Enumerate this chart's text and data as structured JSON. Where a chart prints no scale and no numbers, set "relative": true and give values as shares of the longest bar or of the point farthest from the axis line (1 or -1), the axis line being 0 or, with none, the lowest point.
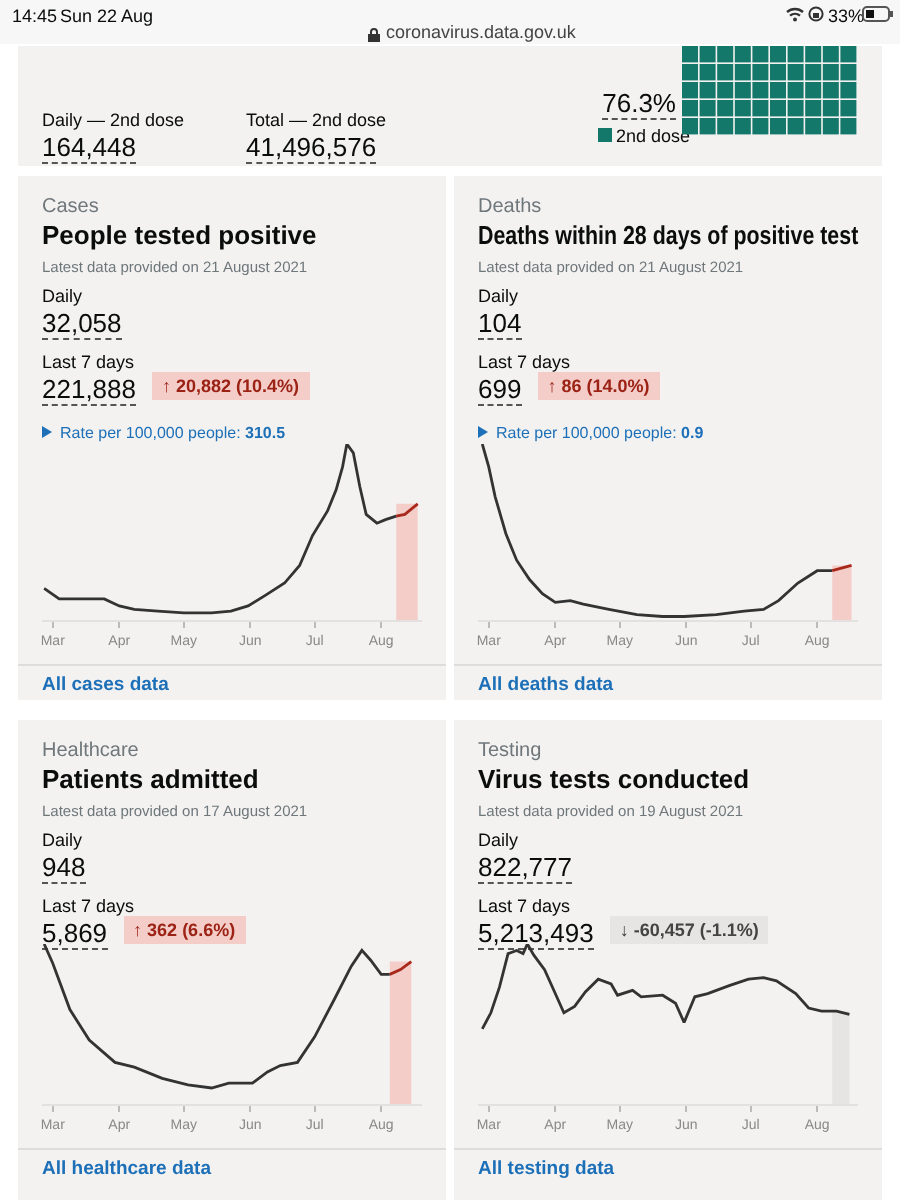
{
  "chart_data": [
    {
      "type": "other",
      "color": "#13776a",
      "annotations": [
        "14:45",
        "Sun 22 Aug",
        "coronavirus.data.gov.uk",
        "33%",
        "Daily — 2nd dose",
        "164,448",
        "Total — 2nd dose",
        "41,496,576",
        "76.3%",
        "2nd dose"
      ]
    },
    {
      "type": "line",
      "relative": true,
      "title": "People tested positive",
      "subtitle": "Latest data provided on 21 August 2021",
      "annotations": [
        "Cases",
        "Daily",
        "32,058",
        "Last 7 days",
        "221,888",
        "↑ 20,882 (10.4%)",
        "Rate per 100,000 people:",
        "310.5",
        "All cases data"
      ],
      "xlim": [
        "2021-02-24",
        "2021-08-20"
      ],
      "xticks": [
        {
          "value": "2021-03-01",
          "label": "Mar"
        },
        {
          "value": "2021-04-01",
          "label": "Apr"
        },
        {
          "value": "2021-05-01",
          "label": "May"
        },
        {
          "value": "2021-06-01",
          "label": "Jun"
        },
        {
          "value": "2021-07-01",
          "label": "Jul"
        },
        {
          "value": "2021-08-01",
          "label": "Aug"
        }
      ],
      "bands": [
        {
          "axis": "x",
          "from": "2021-08-08",
          "to": "2021-08-18",
          "color": "#f4cdc9"
        }
      ],
      "series": [
        {
          "color": "#333333",
          "x": [
            "2021-02-25",
            "2021-03-04",
            "2021-03-15",
            "2021-03-25",
            "2021-04-01",
            "2021-04-08",
            "2021-04-19",
            "2021-05-01",
            "2021-05-14",
            "2021-05-23",
            "2021-05-31",
            "2021-06-08",
            "2021-06-17",
            "2021-06-24",
            "2021-06-30",
            "2021-07-07",
            "2021-07-11",
            "2021-07-14",
            "2021-07-16",
            "2021-07-19",
            "2021-07-22",
            "2021-07-25",
            "2021-07-30",
            "2021-08-03",
            "2021-08-08"
          ],
          "values": [
            0.18,
            0.12,
            0.12,
            0.12,
            0.08,
            0.06,
            0.05,
            0.04,
            0.04,
            0.05,
            0.08,
            0.14,
            0.21,
            0.31,
            0.48,
            0.62,
            0.74,
            0.87,
            1.0,
            0.95,
            0.76,
            0.6,
            0.55,
            0.57,
            0.59
          ]
        },
        {
          "color": "#a8281b",
          "x": [
            "2021-08-08",
            "2021-08-12",
            "2021-08-18"
          ],
          "values": [
            0.59,
            0.6,
            0.66
          ]
        }
      ]
    },
    {
      "type": "line",
      "relative": true,
      "title": "Deaths within 28 days of positive test",
      "subtitle": "Latest data provided on 21 August 2021",
      "annotations": [
        "Deaths",
        "Daily",
        "104",
        "Last 7 days",
        "699",
        "↑ 86 (14.0%)",
        "Rate per 100,000 people:",
        "0.9",
        "All deaths data"
      ],
      "xlim": [
        "2021-02-24",
        "2021-08-20"
      ],
      "xticks": [
        {
          "value": "2021-03-01",
          "label": "Mar"
        },
        {
          "value": "2021-04-01",
          "label": "Apr"
        },
        {
          "value": "2021-05-01",
          "label": "May"
        },
        {
          "value": "2021-06-01",
          "label": "Jun"
        },
        {
          "value": "2021-07-01",
          "label": "Jul"
        },
        {
          "value": "2021-08-01",
          "label": "Aug"
        }
      ],
      "bands": [
        {
          "axis": "x",
          "from": "2021-08-08",
          "to": "2021-08-17",
          "color": "#f4cdc9"
        }
      ],
      "series": [
        {
          "color": "#333333",
          "x": [
            "2021-02-26",
            "2021-03-01",
            "2021-03-04",
            "2021-03-09",
            "2021-03-14",
            "2021-03-20",
            "2021-03-26",
            "2021-04-01",
            "2021-04-08",
            "2021-04-14",
            "2021-04-26",
            "2021-05-09",
            "2021-05-21",
            "2021-05-31",
            "2021-06-15",
            "2021-06-28",
            "2021-07-07",
            "2021-07-14",
            "2021-07-23",
            "2021-08-01",
            "2021-08-08"
          ],
          "values": [
            1.0,
            0.87,
            0.7,
            0.49,
            0.34,
            0.23,
            0.15,
            0.1,
            0.11,
            0.09,
            0.06,
            0.03,
            0.02,
            0.02,
            0.03,
            0.05,
            0.06,
            0.11,
            0.21,
            0.28,
            0.28
          ]
        },
        {
          "color": "#a8281b",
          "x": [
            "2021-08-08",
            "2021-08-17"
          ],
          "values": [
            0.28,
            0.31
          ]
        }
      ]
    },
    {
      "type": "line",
      "relative": true,
      "title": "Patients admitted",
      "subtitle": "Latest data provided on 17 August 2021",
      "annotations": [
        "Healthcare",
        "Daily",
        "948",
        "Last 7 days",
        "5,869",
        "↑ 362 (6.6%)",
        "All healthcare data"
      ],
      "xlim": [
        "2021-02-24",
        "2021-08-20"
      ],
      "xticks": [
        {
          "value": "2021-03-01",
          "label": "Mar"
        },
        {
          "value": "2021-04-01",
          "label": "Apr"
        },
        {
          "value": "2021-05-01",
          "label": "May"
        },
        {
          "value": "2021-06-01",
          "label": "Jun"
        },
        {
          "value": "2021-07-01",
          "label": "Jul"
        },
        {
          "value": "2021-08-01",
          "label": "Aug"
        }
      ],
      "bands": [
        {
          "axis": "x",
          "from": "2021-08-05",
          "to": "2021-08-15",
          "color": "#f4cdc9"
        }
      ],
      "series": [
        {
          "color": "#333333",
          "x": [
            "2021-02-25",
            "2021-03-01",
            "2021-03-09",
            "2021-03-18",
            "2021-03-30",
            "2021-04-08",
            "2021-04-21",
            "2021-05-03",
            "2021-05-14",
            "2021-05-22",
            "2021-06-02",
            "2021-06-09",
            "2021-06-15",
            "2021-06-23",
            "2021-07-01",
            "2021-07-10",
            "2021-07-18",
            "2021-07-23",
            "2021-07-27",
            "2021-08-01",
            "2021-08-05"
          ],
          "values": [
            1.0,
            0.88,
            0.59,
            0.4,
            0.26,
            0.23,
            0.16,
            0.12,
            0.1,
            0.13,
            0.13,
            0.2,
            0.24,
            0.26,
            0.42,
            0.65,
            0.86,
            0.96,
            0.9,
            0.81,
            0.81
          ]
        },
        {
          "color": "#a8281b",
          "x": [
            "2021-08-05",
            "2021-08-10",
            "2021-08-15"
          ],
          "values": [
            0.81,
            0.84,
            0.89
          ]
        }
      ]
    },
    {
      "type": "line",
      "relative": true,
      "title": "Virus tests conducted",
      "subtitle": "Latest data provided on 19 August 2021",
      "annotations": [
        "Testing",
        "Daily",
        "822,777",
        "Last 7 days",
        "5,213,493",
        "↓ -60,457 (-1.1%)",
        "All testing data"
      ],
      "xlim": [
        "2021-02-24",
        "2021-08-20"
      ],
      "xticks": [
        {
          "value": "2021-03-01",
          "label": "Mar"
        },
        {
          "value": "2021-04-01",
          "label": "Apr"
        },
        {
          "value": "2021-05-01",
          "label": "May"
        },
        {
          "value": "2021-06-01",
          "label": "Jun"
        },
        {
          "value": "2021-07-01",
          "label": "Jul"
        },
        {
          "value": "2021-08-01",
          "label": "Aug"
        }
      ],
      "bands": [
        {
          "axis": "x",
          "from": "2021-08-08",
          "to": "2021-08-16",
          "color": "#e6e5e3"
        }
      ],
      "series": [
        {
          "color": "#333333",
          "x": [
            "2021-02-26",
            "2021-03-02",
            "2021-03-06",
            "2021-03-10",
            "2021-03-14",
            "2021-03-17",
            "2021-03-19",
            "2021-03-22",
            "2021-03-27",
            "2021-03-31",
            "2021-04-05",
            "2021-04-10",
            "2021-04-15",
            "2021-04-21",
            "2021-04-27",
            "2021-04-30",
            "2021-05-07",
            "2021-05-11",
            "2021-05-21",
            "2021-05-27",
            "2021-05-31",
            "2021-06-05",
            "2021-06-11",
            "2021-06-21",
            "2021-06-30",
            "2021-07-07",
            "2021-07-13",
            "2021-07-22",
            "2021-07-28",
            "2021-08-03",
            "2021-08-10",
            "2021-08-16"
          ],
          "values": [
            0.47,
            0.57,
            0.73,
            0.94,
            0.96,
            0.94,
            1.0,
            0.93,
            0.84,
            0.72,
            0.57,
            0.61,
            0.7,
            0.78,
            0.75,
            0.68,
            0.71,
            0.67,
            0.68,
            0.63,
            0.51,
            0.67,
            0.69,
            0.74,
            0.78,
            0.79,
            0.77,
            0.69,
            0.6,
            0.58,
            0.58,
            0.56
          ]
        }
      ]
    }
  ]
}
